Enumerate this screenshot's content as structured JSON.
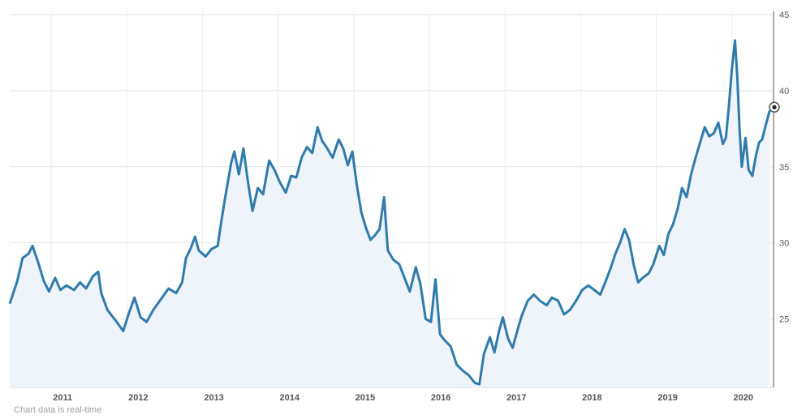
{
  "chart_data": {
    "type": "area",
    "x_ticks": [
      "2011",
      "2012",
      "2013",
      "2014",
      "2015",
      "2016",
      "2017",
      "2018",
      "2019",
      "2020"
    ],
    "y_ticks": [
      25,
      30,
      35,
      40,
      45
    ],
    "ylim": [
      20.5,
      45
    ],
    "xlim": [
      2010.45,
      2020.55
    ],
    "grid": true,
    "y_axis_side": "right",
    "line_color": "#2f7bab",
    "fill_color": "#eef4fa",
    "series": [
      {
        "points": [
          [
            2010.45,
            26.0
          ],
          [
            2010.55,
            27.5
          ],
          [
            2010.62,
            29.0
          ],
          [
            2010.7,
            29.3
          ],
          [
            2010.75,
            29.8
          ],
          [
            2010.82,
            28.8
          ],
          [
            2010.9,
            27.5
          ],
          [
            2010.97,
            26.8
          ],
          [
            2011.05,
            27.7
          ],
          [
            2011.12,
            26.9
          ],
          [
            2011.2,
            27.2
          ],
          [
            2011.3,
            26.9
          ],
          [
            2011.38,
            27.4
          ],
          [
            2011.46,
            27.0
          ],
          [
            2011.55,
            27.8
          ],
          [
            2011.62,
            28.1
          ],
          [
            2011.66,
            26.7
          ],
          [
            2011.74,
            25.6
          ],
          [
            2011.85,
            24.9
          ],
          [
            2011.95,
            24.2
          ],
          [
            2012.02,
            25.3
          ],
          [
            2012.1,
            26.4
          ],
          [
            2012.18,
            25.1
          ],
          [
            2012.26,
            24.8
          ],
          [
            2012.35,
            25.6
          ],
          [
            2012.45,
            26.3
          ],
          [
            2012.55,
            27.0
          ],
          [
            2012.65,
            26.7
          ],
          [
            2012.73,
            27.4
          ],
          [
            2012.78,
            29.0
          ],
          [
            2012.84,
            29.6
          ],
          [
            2012.9,
            30.4
          ],
          [
            2012.95,
            29.5
          ],
          [
            2013.04,
            29.1
          ],
          [
            2013.12,
            29.6
          ],
          [
            2013.2,
            29.8
          ],
          [
            2013.25,
            31.5
          ],
          [
            2013.3,
            33.0
          ],
          [
            2013.38,
            35.3
          ],
          [
            2013.42,
            36.0
          ],
          [
            2013.48,
            34.5
          ],
          [
            2013.54,
            36.2
          ],
          [
            2013.6,
            34.0
          ],
          [
            2013.66,
            32.1
          ],
          [
            2013.73,
            33.6
          ],
          [
            2013.8,
            33.2
          ],
          [
            2013.88,
            35.4
          ],
          [
            2013.95,
            34.8
          ],
          [
            2014.02,
            34.0
          ],
          [
            2014.1,
            33.3
          ],
          [
            2014.17,
            34.4
          ],
          [
            2014.24,
            34.3
          ],
          [
            2014.31,
            35.6
          ],
          [
            2014.38,
            36.3
          ],
          [
            2014.45,
            35.9
          ],
          [
            2014.52,
            37.6
          ],
          [
            2014.58,
            36.7
          ],
          [
            2014.65,
            36.2
          ],
          [
            2014.72,
            35.6
          ],
          [
            2014.8,
            36.8
          ],
          [
            2014.86,
            36.2
          ],
          [
            2014.92,
            35.1
          ],
          [
            2014.98,
            36.0
          ],
          [
            2015.04,
            33.8
          ],
          [
            2015.1,
            32.0
          ],
          [
            2015.16,
            31.0
          ],
          [
            2015.22,
            30.2
          ],
          [
            2015.28,
            30.5
          ],
          [
            2015.34,
            30.9
          ],
          [
            2015.4,
            33.0
          ],
          [
            2015.45,
            29.5
          ],
          [
            2015.52,
            28.9
          ],
          [
            2015.6,
            28.6
          ],
          [
            2015.67,
            27.7
          ],
          [
            2015.74,
            26.8
          ],
          [
            2015.82,
            28.4
          ],
          [
            2015.88,
            27.3
          ],
          [
            2015.95,
            25.0
          ],
          [
            2016.02,
            24.8
          ],
          [
            2016.08,
            27.6
          ],
          [
            2016.14,
            24.0
          ],
          [
            2016.2,
            23.6
          ],
          [
            2016.28,
            23.2
          ],
          [
            2016.36,
            22.0
          ],
          [
            2016.44,
            21.6
          ],
          [
            2016.52,
            21.3
          ],
          [
            2016.6,
            20.8
          ],
          [
            2016.66,
            20.7
          ],
          [
            2016.72,
            22.7
          ],
          [
            2016.8,
            23.8
          ],
          [
            2016.86,
            22.8
          ],
          [
            2016.92,
            24.2
          ],
          [
            2016.97,
            25.1
          ],
          [
            2017.04,
            23.7
          ],
          [
            2017.1,
            23.1
          ],
          [
            2017.16,
            24.2
          ],
          [
            2017.22,
            25.2
          ],
          [
            2017.3,
            26.2
          ],
          [
            2017.38,
            26.6
          ],
          [
            2017.46,
            26.2
          ],
          [
            2017.55,
            25.9
          ],
          [
            2017.62,
            26.4
          ],
          [
            2017.7,
            26.2
          ],
          [
            2017.78,
            25.3
          ],
          [
            2017.86,
            25.6
          ],
          [
            2017.94,
            26.2
          ],
          [
            2018.02,
            26.9
          ],
          [
            2018.1,
            27.2
          ],
          [
            2018.18,
            26.9
          ],
          [
            2018.26,
            26.6
          ],
          [
            2018.34,
            27.6
          ],
          [
            2018.4,
            28.4
          ],
          [
            2018.46,
            29.3
          ],
          [
            2018.52,
            30.0
          ],
          [
            2018.58,
            30.9
          ],
          [
            2018.64,
            30.2
          ],
          [
            2018.7,
            28.6
          ],
          [
            2018.76,
            27.4
          ],
          [
            2018.82,
            27.7
          ],
          [
            2018.9,
            28.0
          ],
          [
            2018.96,
            28.6
          ],
          [
            2019.04,
            29.8
          ],
          [
            2019.1,
            29.2
          ],
          [
            2019.16,
            30.6
          ],
          [
            2019.22,
            31.2
          ],
          [
            2019.28,
            32.2
          ],
          [
            2019.34,
            33.6
          ],
          [
            2019.4,
            33.0
          ],
          [
            2019.46,
            34.5
          ],
          [
            2019.52,
            35.6
          ],
          [
            2019.58,
            36.6
          ],
          [
            2019.64,
            37.6
          ],
          [
            2019.7,
            37.0
          ],
          [
            2019.76,
            37.2
          ],
          [
            2019.82,
            37.9
          ],
          [
            2019.88,
            36.5
          ],
          [
            2019.92,
            36.9
          ],
          [
            2019.96,
            39.0
          ],
          [
            2020.0,
            41.5
          ],
          [
            2020.04,
            43.3
          ],
          [
            2020.07,
            41.0
          ],
          [
            2020.1,
            37.5
          ],
          [
            2020.13,
            35.0
          ],
          [
            2020.18,
            36.9
          ],
          [
            2020.22,
            34.8
          ],
          [
            2020.27,
            34.4
          ],
          [
            2020.32,
            35.8
          ],
          [
            2020.36,
            36.6
          ],
          [
            2020.4,
            36.8
          ],
          [
            2020.45,
            37.8
          ],
          [
            2020.5,
            38.7
          ]
        ]
      }
    ]
  },
  "footnote": "Chart data is real-time"
}
